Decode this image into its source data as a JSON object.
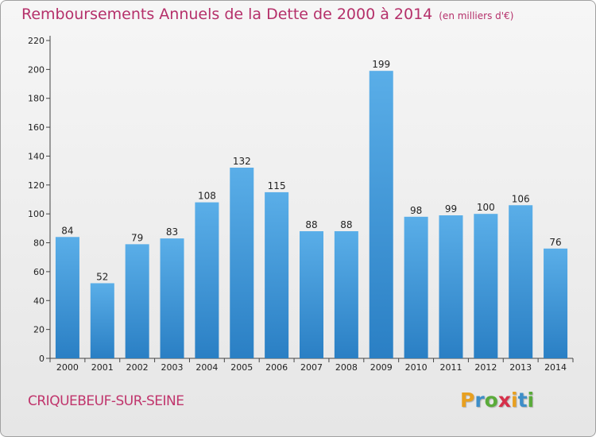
{
  "chart_data": {
    "type": "bar",
    "title": "Remboursements Annuels de la Dette de 2000 à 2014",
    "subtitle": "(en milliers d'€)",
    "categories": [
      "2000",
      "2001",
      "2002",
      "2003",
      "2004",
      "2005",
      "2006",
      "2007",
      "2008",
      "2009",
      "2010",
      "2011",
      "2012",
      "2013",
      "2014"
    ],
    "values": [
      84,
      52,
      79,
      83,
      108,
      132,
      115,
      88,
      88,
      199,
      98,
      99,
      100,
      106,
      76
    ],
    "ylim": [
      0,
      220
    ],
    "yticks": [
      0,
      20,
      40,
      60,
      80,
      100,
      120,
      140,
      160,
      180,
      200,
      220
    ],
    "grid": false,
    "bar_color_top": "#5aaee8",
    "bar_color_bottom": "#2a7fc4"
  },
  "location": "CRIQUEBEUF-SUR-SEINE",
  "brand": {
    "letters": [
      "P",
      "r",
      "o",
      "x",
      "i",
      "t",
      "i"
    ],
    "colors": [
      "#e8a020",
      "#3d8ec9",
      "#5aab3a",
      "#d6304a",
      "#e8a020",
      "#3d8ec9",
      "#5aab3a"
    ]
  }
}
